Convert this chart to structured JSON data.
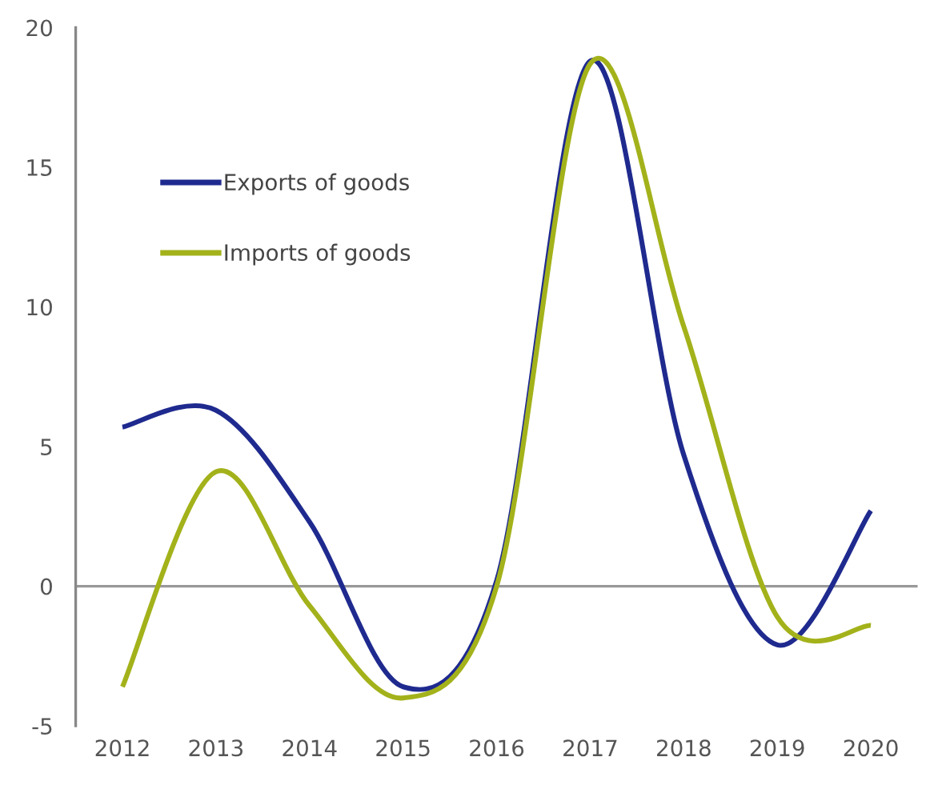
{
  "chart_data": {
    "type": "line",
    "categories": [
      "2012",
      "2013",
      "2014",
      "2015",
      "2016",
      "2017",
      "2018",
      "2019",
      "2020"
    ],
    "series": [
      {
        "name": "Exports of goods",
        "color": "#1f2a8f",
        "values": [
          5.7,
          6.3,
          2.3,
          -3.6,
          0.2,
          18.8,
          4.7,
          -2.1,
          2.7
        ]
      },
      {
        "name": "Imports of goods",
        "color": "#a3b21a",
        "values": [
          -3.6,
          4.1,
          -0.7,
          -4.0,
          0.0,
          18.7,
          9.3,
          -1.1,
          -1.4
        ]
      }
    ],
    "ylim": [
      -5,
      20
    ],
    "yticks": [
      -5,
      0,
      5,
      10,
      15,
      20
    ],
    "grid": false,
    "ref_lines": [
      {
        "axis": "y",
        "value": 0,
        "color": "#999999"
      }
    ],
    "legend": "top left",
    "marker": "none",
    "line_style": "solid"
  }
}
